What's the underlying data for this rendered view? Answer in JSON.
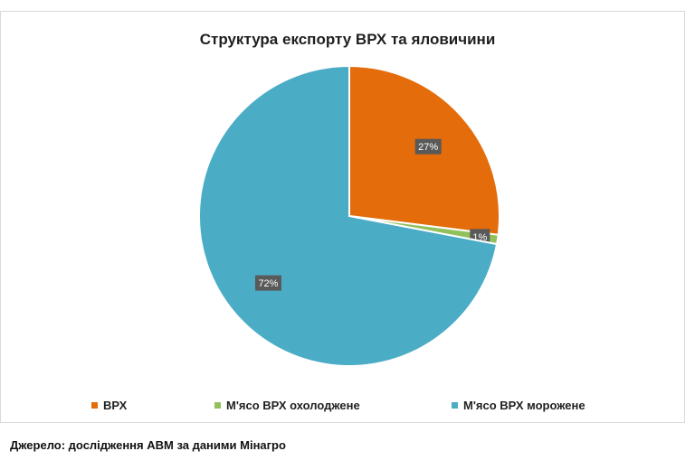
{
  "chart_data": {
    "type": "pie",
    "title": "Структура експорту ВРХ та яловичини",
    "slices": [
      {
        "name": "ВРХ",
        "value": 27,
        "label": "27%",
        "color": "#E46C0A"
      },
      {
        "name": "М'ясо ВРХ охолоджене",
        "value": 1,
        "label": "1%",
        "color": "#92C05B"
      },
      {
        "name": "М'ясо ВРХ морожене",
        "value": 72,
        "label": "72%",
        "color": "#4BACC6"
      }
    ],
    "legend_position": "bottom"
  },
  "source_note": "Джерело: дослідження АВМ за даними Мінагро"
}
